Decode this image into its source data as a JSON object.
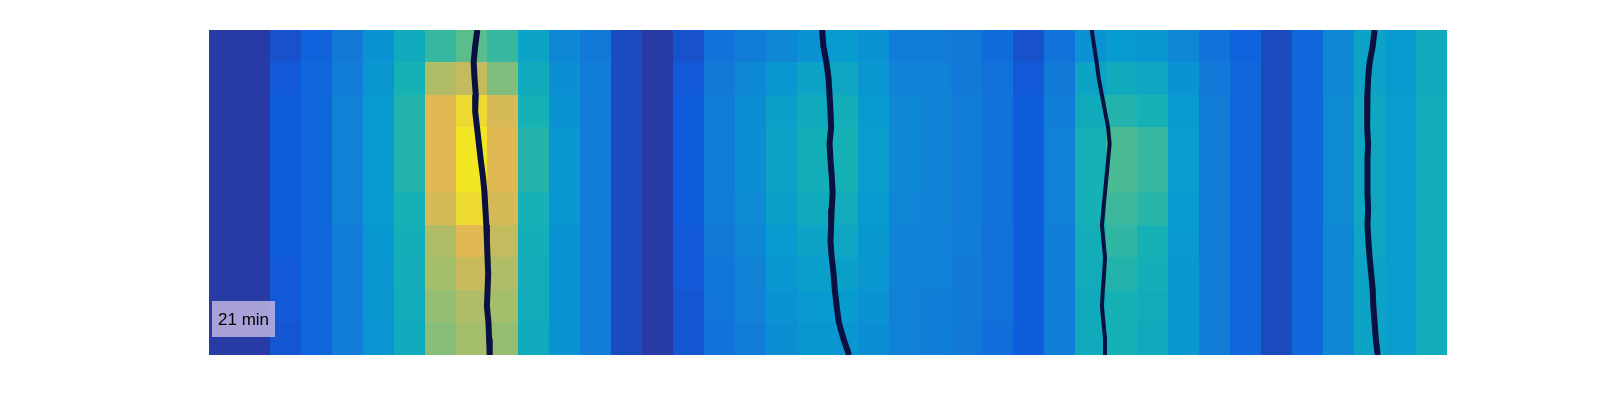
{
  "chart_data": {
    "type": "heatmap",
    "annotation": "21 min",
    "xlim": [
      0,
      40
    ],
    "ylim": [
      0,
      10
    ],
    "tick_labels": false,
    "color_range": [
      0,
      1
    ],
    "cells": [
      [
        0.05,
        0.05,
        0.12,
        0.18,
        0.28,
        0.4,
        0.55,
        0.65,
        0.7,
        0.65,
        0.5,
        0.35,
        0.28,
        0.1,
        0.05,
        0.12,
        0.25,
        0.3,
        0.35,
        0.4,
        0.45,
        0.4,
        0.3,
        0.3,
        0.28,
        0.22,
        0.12,
        0.25,
        0.4,
        0.45,
        0.42,
        0.35,
        0.25,
        0.18,
        0.1,
        0.2,
        0.35,
        0.5,
        0.45,
        0.55
      ],
      [
        0.05,
        0.05,
        0.14,
        0.2,
        0.3,
        0.42,
        0.6,
        0.82,
        0.85,
        0.75,
        0.55,
        0.38,
        0.3,
        0.1,
        0.05,
        0.14,
        0.28,
        0.35,
        0.42,
        0.5,
        0.52,
        0.42,
        0.33,
        0.32,
        0.28,
        0.24,
        0.14,
        0.28,
        0.5,
        0.55,
        0.52,
        0.4,
        0.28,
        0.2,
        0.1,
        0.2,
        0.35,
        0.5,
        0.45,
        0.55
      ],
      [
        0.05,
        0.05,
        0.15,
        0.2,
        0.32,
        0.45,
        0.62,
        0.9,
        0.95,
        0.88,
        0.6,
        0.4,
        0.3,
        0.1,
        0.05,
        0.15,
        0.3,
        0.38,
        0.48,
        0.55,
        0.58,
        0.45,
        0.35,
        0.33,
        0.3,
        0.25,
        0.15,
        0.3,
        0.55,
        0.62,
        0.6,
        0.45,
        0.3,
        0.2,
        0.1,
        0.2,
        0.36,
        0.52,
        0.46,
        0.56
      ],
      [
        0.05,
        0.05,
        0.15,
        0.2,
        0.32,
        0.45,
        0.62,
        0.9,
        0.97,
        0.9,
        0.62,
        0.42,
        0.3,
        0.1,
        0.05,
        0.15,
        0.3,
        0.38,
        0.5,
        0.58,
        0.6,
        0.46,
        0.35,
        0.33,
        0.3,
        0.25,
        0.15,
        0.32,
        0.6,
        0.68,
        0.65,
        0.46,
        0.3,
        0.2,
        0.1,
        0.2,
        0.36,
        0.52,
        0.46,
        0.56
      ],
      [
        0.05,
        0.05,
        0.15,
        0.2,
        0.32,
        0.45,
        0.62,
        0.9,
        0.97,
        0.9,
        0.62,
        0.42,
        0.3,
        0.1,
        0.05,
        0.15,
        0.3,
        0.38,
        0.5,
        0.58,
        0.6,
        0.46,
        0.35,
        0.33,
        0.3,
        0.25,
        0.15,
        0.32,
        0.6,
        0.68,
        0.65,
        0.46,
        0.3,
        0.2,
        0.1,
        0.2,
        0.36,
        0.52,
        0.46,
        0.56
      ],
      [
        0.05,
        0.05,
        0.15,
        0.2,
        0.32,
        0.45,
        0.6,
        0.88,
        0.95,
        0.88,
        0.6,
        0.42,
        0.3,
        0.1,
        0.05,
        0.15,
        0.3,
        0.37,
        0.48,
        0.55,
        0.56,
        0.45,
        0.34,
        0.33,
        0.3,
        0.25,
        0.15,
        0.32,
        0.6,
        0.66,
        0.63,
        0.45,
        0.3,
        0.2,
        0.1,
        0.2,
        0.36,
        0.52,
        0.46,
        0.56
      ],
      [
        0.05,
        0.05,
        0.15,
        0.2,
        0.3,
        0.43,
        0.58,
        0.82,
        0.9,
        0.85,
        0.58,
        0.4,
        0.3,
        0.1,
        0.05,
        0.14,
        0.28,
        0.35,
        0.45,
        0.5,
        0.52,
        0.43,
        0.33,
        0.32,
        0.3,
        0.24,
        0.15,
        0.3,
        0.58,
        0.64,
        0.6,
        0.44,
        0.3,
        0.2,
        0.1,
        0.2,
        0.35,
        0.52,
        0.46,
        0.56
      ],
      [
        0.05,
        0.05,
        0.14,
        0.2,
        0.3,
        0.42,
        0.57,
        0.8,
        0.86,
        0.82,
        0.57,
        0.4,
        0.3,
        0.1,
        0.05,
        0.14,
        0.27,
        0.33,
        0.42,
        0.47,
        0.48,
        0.42,
        0.33,
        0.32,
        0.29,
        0.24,
        0.15,
        0.3,
        0.56,
        0.62,
        0.58,
        0.43,
        0.3,
        0.2,
        0.1,
        0.2,
        0.35,
        0.5,
        0.46,
        0.56
      ],
      [
        0.05,
        0.05,
        0.14,
        0.2,
        0.3,
        0.42,
        0.56,
        0.78,
        0.82,
        0.8,
        0.56,
        0.4,
        0.3,
        0.1,
        0.05,
        0.13,
        0.26,
        0.32,
        0.4,
        0.44,
        0.45,
        0.4,
        0.32,
        0.31,
        0.29,
        0.24,
        0.15,
        0.3,
        0.55,
        0.6,
        0.56,
        0.42,
        0.3,
        0.2,
        0.1,
        0.2,
        0.35,
        0.5,
        0.46,
        0.56
      ],
      [
        0.05,
        0.05,
        0.13,
        0.19,
        0.3,
        0.41,
        0.55,
        0.76,
        0.8,
        0.78,
        0.55,
        0.4,
        0.3,
        0.1,
        0.05,
        0.13,
        0.25,
        0.3,
        0.38,
        0.42,
        0.42,
        0.38,
        0.32,
        0.31,
        0.28,
        0.23,
        0.15,
        0.3,
        0.55,
        0.6,
        0.55,
        0.42,
        0.3,
        0.2,
        0.1,
        0.2,
        0.35,
        0.5,
        0.46,
        0.56
      ]
    ],
    "y": [
      0,
      0.5,
      1,
      1.5,
      2,
      2.5,
      3,
      3.5,
      4,
      4.5,
      5,
      5.5,
      6,
      6.5,
      7,
      7.5,
      8,
      8.5,
      9,
      9.5,
      10
    ],
    "series": [
      {
        "type": "line",
        "color": "#101a5c",
        "x": [
          8.67,
          8.6,
          8.55,
          8.58,
          8.62,
          8.6,
          8.66,
          8.72,
          8.78,
          8.85,
          8.9,
          8.93,
          8.96,
          8.98,
          9.0,
          9.02,
          9.0,
          8.98,
          9.03,
          9.05,
          9.07
        ]
      },
      {
        "type": "line",
        "color": "#1a2bb5",
        "x": [
          19.81,
          19.85,
          19.95,
          20.02,
          20.05,
          20.08,
          20.1,
          20.05,
          20.08,
          20.12,
          20.15,
          20.12,
          20.1,
          20.08,
          20.12,
          20.18,
          20.22,
          20.28,
          20.35,
          20.5,
          20.68
        ]
      },
      {
        "type": "line",
        "color": "#46c8d8",
        "x": [
          28.52,
          28.6,
          28.68,
          28.75,
          28.85,
          28.95,
          29.05,
          29.1,
          29.05,
          29.0,
          28.95,
          28.9,
          28.85,
          28.9,
          28.95,
          28.92,
          28.88,
          28.85,
          28.9,
          28.95,
          28.95
        ]
      },
      {
        "type": "line",
        "color": "#3ee0c8",
        "x": [
          37.66,
          37.6,
          37.5,
          37.45,
          37.43,
          37.42,
          37.42,
          37.45,
          37.43,
          37.42,
          37.44,
          37.45,
          37.43,
          37.46,
          37.5,
          37.55,
          37.6,
          37.62,
          37.66,
          37.7,
          37.76
        ]
      }
    ]
  }
}
